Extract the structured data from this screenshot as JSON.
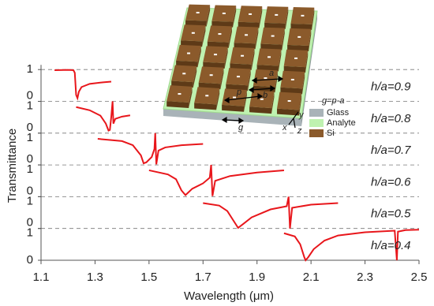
{
  "chart_data": {
    "type": "line",
    "x_label": "Wavelength (μm)",
    "y_label": "Transmittance",
    "xlim": [
      1.1,
      2.5
    ],
    "xticks": [
      1.1,
      1.3,
      1.5,
      1.7,
      1.9,
      2.1,
      2.3,
      2.5
    ],
    "ylim": [
      0,
      1
    ],
    "yticks": [
      0,
      1
    ],
    "series": [
      {
        "name": "h/a=0.9",
        "color": "#e8161b",
        "x": [
          1.15,
          1.2,
          1.22,
          1.225,
          1.23,
          1.235,
          1.24,
          1.25,
          1.28,
          1.33,
          1.36
        ],
        "values": [
          0.98,
          0.99,
          0.98,
          0.9,
          0.2,
          0.1,
          0.3,
          0.45,
          0.55,
          0.6,
          0.62
        ]
      },
      {
        "name": "h/a=0.8",
        "color": "#e8161b",
        "x": [
          1.23,
          1.28,
          1.32,
          1.34,
          1.35,
          1.355,
          1.36,
          1.365,
          1.368,
          1.375,
          1.4,
          1.43
        ],
        "values": [
          0.82,
          0.72,
          0.55,
          0.3,
          0.08,
          0.1,
          0.5,
          1.0,
          0.3,
          0.45,
          0.52,
          0.56
        ]
      },
      {
        "name": "h/a=0.7",
        "color": "#e8161b",
        "x": [
          1.31,
          1.4,
          1.44,
          1.47,
          1.48,
          1.49,
          1.51,
          1.52,
          1.523,
          1.527,
          1.535,
          1.56,
          1.62,
          1.7
        ],
        "values": [
          0.82,
          0.75,
          0.62,
          0.3,
          0.05,
          0.08,
          0.25,
          0.5,
          1.0,
          0.02,
          0.45,
          0.55,
          0.62,
          0.66
        ]
      },
      {
        "name": "h/a=0.6",
        "color": "#e8161b",
        "x": [
          1.5,
          1.57,
          1.6,
          1.62,
          1.635,
          1.66,
          1.7,
          1.725,
          1.73,
          1.735,
          1.745,
          1.8,
          1.9,
          2.0
        ],
        "values": [
          0.83,
          0.7,
          0.55,
          0.2,
          0.05,
          0.25,
          0.42,
          0.6,
          1.0,
          0.02,
          0.5,
          0.65,
          0.76,
          0.83
        ]
      },
      {
        "name": "h/a=0.5",
        "color": "#e8161b",
        "x": [
          1.7,
          1.76,
          1.79,
          1.82,
          1.83,
          1.85,
          1.88,
          1.95,
          2.01,
          2.017,
          2.022,
          2.03,
          2.1,
          2.2
        ],
        "values": [
          0.8,
          0.72,
          0.55,
          0.15,
          0.02,
          0.15,
          0.35,
          0.6,
          0.7,
          1.0,
          0.0,
          0.65,
          0.75,
          0.8
        ]
      },
      {
        "name": "h/a=0.4",
        "color": "#e8161b",
        "x": [
          2.0,
          2.04,
          2.06,
          2.075,
          2.08,
          2.09,
          2.11,
          2.15,
          2.2,
          2.3,
          2.41,
          2.418,
          2.422,
          2.45,
          2.5
        ],
        "values": [
          0.85,
          0.75,
          0.5,
          0.1,
          0.0,
          0.1,
          0.35,
          0.62,
          0.78,
          0.88,
          0.93,
          0.0,
          0.9,
          0.95,
          0.96
        ]
      }
    ]
  },
  "inset": {
    "labels": {
      "a": "a",
      "b": "b",
      "p": "p",
      "g": "g",
      "formula": "g=p-a",
      "x": "x",
      "y": "y",
      "z": "z"
    },
    "legend": [
      "Glass",
      "Analyte",
      "Si"
    ]
  }
}
